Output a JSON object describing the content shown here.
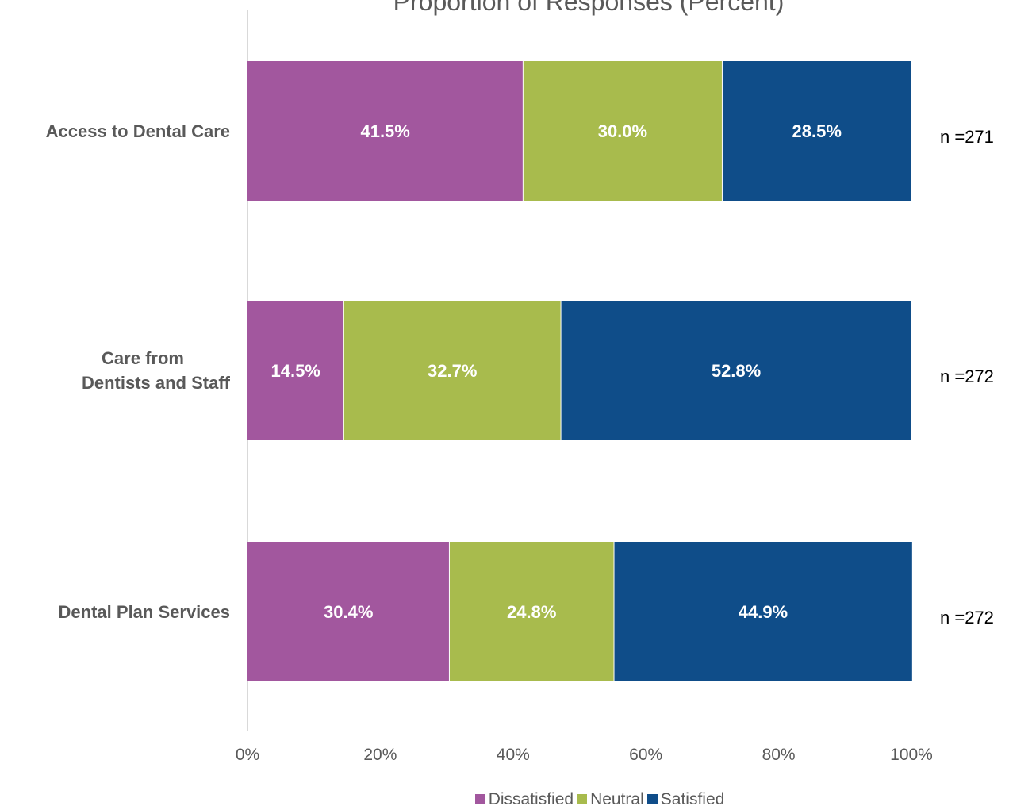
{
  "chart_data": {
    "type": "bar",
    "orientation": "horizontal",
    "stacked": true,
    "title": "Proportion of Responses (Percent)",
    "categories": [
      "Access to Dental Care",
      "Care from\nDentists and Staff",
      "Dental Plan Services"
    ],
    "series": [
      {
        "name": "Dissatisfied",
        "color": "#a2579e",
        "values": [
          41.5,
          14.5,
          30.4
        ]
      },
      {
        "name": "Neutral",
        "color": "#a8bb4d",
        "values": [
          30.0,
          32.7,
          24.8
        ]
      },
      {
        "name": "Satisfied",
        "color": "#0f4d89",
        "values": [
          28.5,
          52.8,
          44.9
        ]
      }
    ],
    "data_labels": [
      [
        "41.5%",
        "30.0%",
        "28.5%"
      ],
      [
        "14.5%",
        "32.7%",
        "52.8%"
      ],
      [
        "30.4%",
        "24.8%",
        "44.9%"
      ]
    ],
    "annotations": [
      "n =271",
      "n =272",
      "n =272"
    ],
    "xticks": [
      "0%",
      "20%",
      "40%",
      "60%",
      "80%",
      "100%"
    ],
    "xlim": [
      0,
      100
    ],
    "grid": false,
    "legend_position": "bottom"
  }
}
